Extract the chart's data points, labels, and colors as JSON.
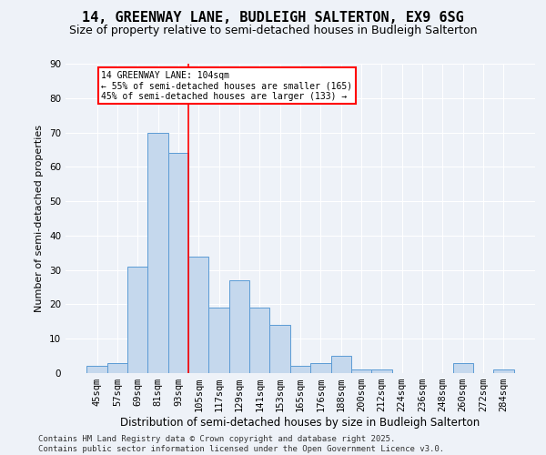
{
  "title": "14, GREENWAY LANE, BUDLEIGH SALTERTON, EX9 6SG",
  "subtitle": "Size of property relative to semi-detached houses in Budleigh Salterton",
  "xlabel": "Distribution of semi-detached houses by size in Budleigh Salterton",
  "ylabel": "Number of semi-detached properties",
  "footer": "Contains HM Land Registry data © Crown copyright and database right 2025.\nContains public sector information licensed under the Open Government Licence v3.0.",
  "categories": [
    "45sqm",
    "57sqm",
    "69sqm",
    "81sqm",
    "93sqm",
    "105sqm",
    "117sqm",
    "129sqm",
    "141sqm",
    "153sqm",
    "165sqm",
    "176sqm",
    "188sqm",
    "200sqm",
    "212sqm",
    "224sqm",
    "236sqm",
    "248sqm",
    "260sqm",
    "272sqm",
    "284sqm"
  ],
  "values": [
    2,
    3,
    31,
    70,
    64,
    34,
    19,
    27,
    19,
    14,
    2,
    3,
    5,
    1,
    1,
    0,
    0,
    0,
    3,
    0,
    1
  ],
  "bar_color": "#c5d8ed",
  "bar_edge_color": "#5b9bd5",
  "bar_width": 1.0,
  "red_line_x": 4.5,
  "annotation_text": "14 GREENWAY LANE: 104sqm\n← 55% of semi-detached houses are smaller (165)\n45% of semi-detached houses are larger (133) →",
  "annotation_box_color": "white",
  "annotation_box_edge_color": "red",
  "ylim": [
    0,
    90
  ],
  "yticks": [
    0,
    10,
    20,
    30,
    40,
    50,
    60,
    70,
    80,
    90
  ],
  "background_color": "#eef2f8",
  "grid_color": "white",
  "title_fontsize": 11,
  "subtitle_fontsize": 9,
  "xlabel_fontsize": 8.5,
  "ylabel_fontsize": 8,
  "tick_fontsize": 7.5,
  "footer_fontsize": 6.5,
  "annotation_fontsize": 7
}
